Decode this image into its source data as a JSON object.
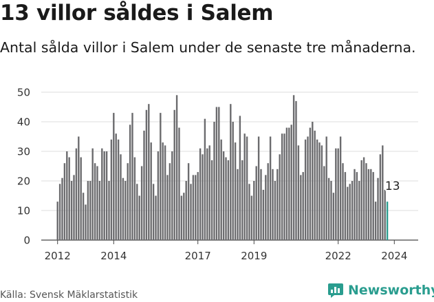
{
  "header": {
    "title": "13 villor såldes i Salem",
    "subtitle": "Antal sålda villor i Salem under de senaste tre månaderna."
  },
  "footer": {
    "source": "Källa: Svensk Mäklarstatistik",
    "brand": "Newsworthy"
  },
  "colors": {
    "bar": "#6b6b6e",
    "highlight": "#2a9d8f",
    "grid": "#dddddd",
    "text": "#1a1a1a"
  },
  "chart_data": {
    "type": "bar",
    "title": "13 villor såldes i Salem",
    "xlabel": "",
    "ylabel": "",
    "ylim": [
      0,
      50
    ],
    "yticks": [
      "0",
      "10",
      "20",
      "30",
      "40",
      "50"
    ],
    "xticks": [
      {
        "label": "2012",
        "index": 0
      },
      {
        "label": "2014",
        "index": 24
      },
      {
        "label": "2017",
        "index": 60
      },
      {
        "label": "2019",
        "index": 84
      },
      {
        "label": "2022",
        "index": 120
      },
      {
        "label": "2024",
        "index": 144
      }
    ],
    "grid": true,
    "start": "2011-12",
    "values": [
      13,
      19,
      21,
      26,
      30,
      28,
      20,
      22,
      31,
      35,
      28,
      16,
      12,
      20,
      20,
      31,
      26,
      25,
      20,
      31,
      30,
      30,
      20,
      34,
      43,
      36,
      34,
      29,
      21,
      20,
      26,
      39,
      43,
      28,
      19,
      15,
      25,
      37,
      44,
      46,
      33,
      19,
      15,
      30,
      43,
      33,
      32,
      22,
      26,
      30,
      44,
      49,
      38,
      15,
      16,
      20,
      26,
      19,
      22,
      22,
      23,
      31,
      29,
      41,
      31,
      32,
      27,
      40,
      45,
      45,
      34,
      30,
      28,
      27,
      46,
      40,
      33,
      24,
      42,
      27,
      36,
      35,
      19,
      15,
      20,
      25,
      35,
      24,
      17,
      22,
      26,
      35,
      24,
      20,
      24,
      29,
      36,
      36,
      38,
      38,
      39,
      49,
      47,
      32,
      22,
      23,
      34,
      35,
      38,
      40,
      37,
      34,
      33,
      32,
      25,
      35,
      21,
      20,
      16,
      31,
      31,
      35,
      26,
      23,
      18,
      19,
      20,
      24,
      23,
      20,
      27,
      28,
      26,
      24,
      24,
      23,
      13,
      21,
      29,
      32,
      17,
      13
    ],
    "highlight_last": 1,
    "annotation": {
      "text": "13",
      "index": 141
    }
  }
}
